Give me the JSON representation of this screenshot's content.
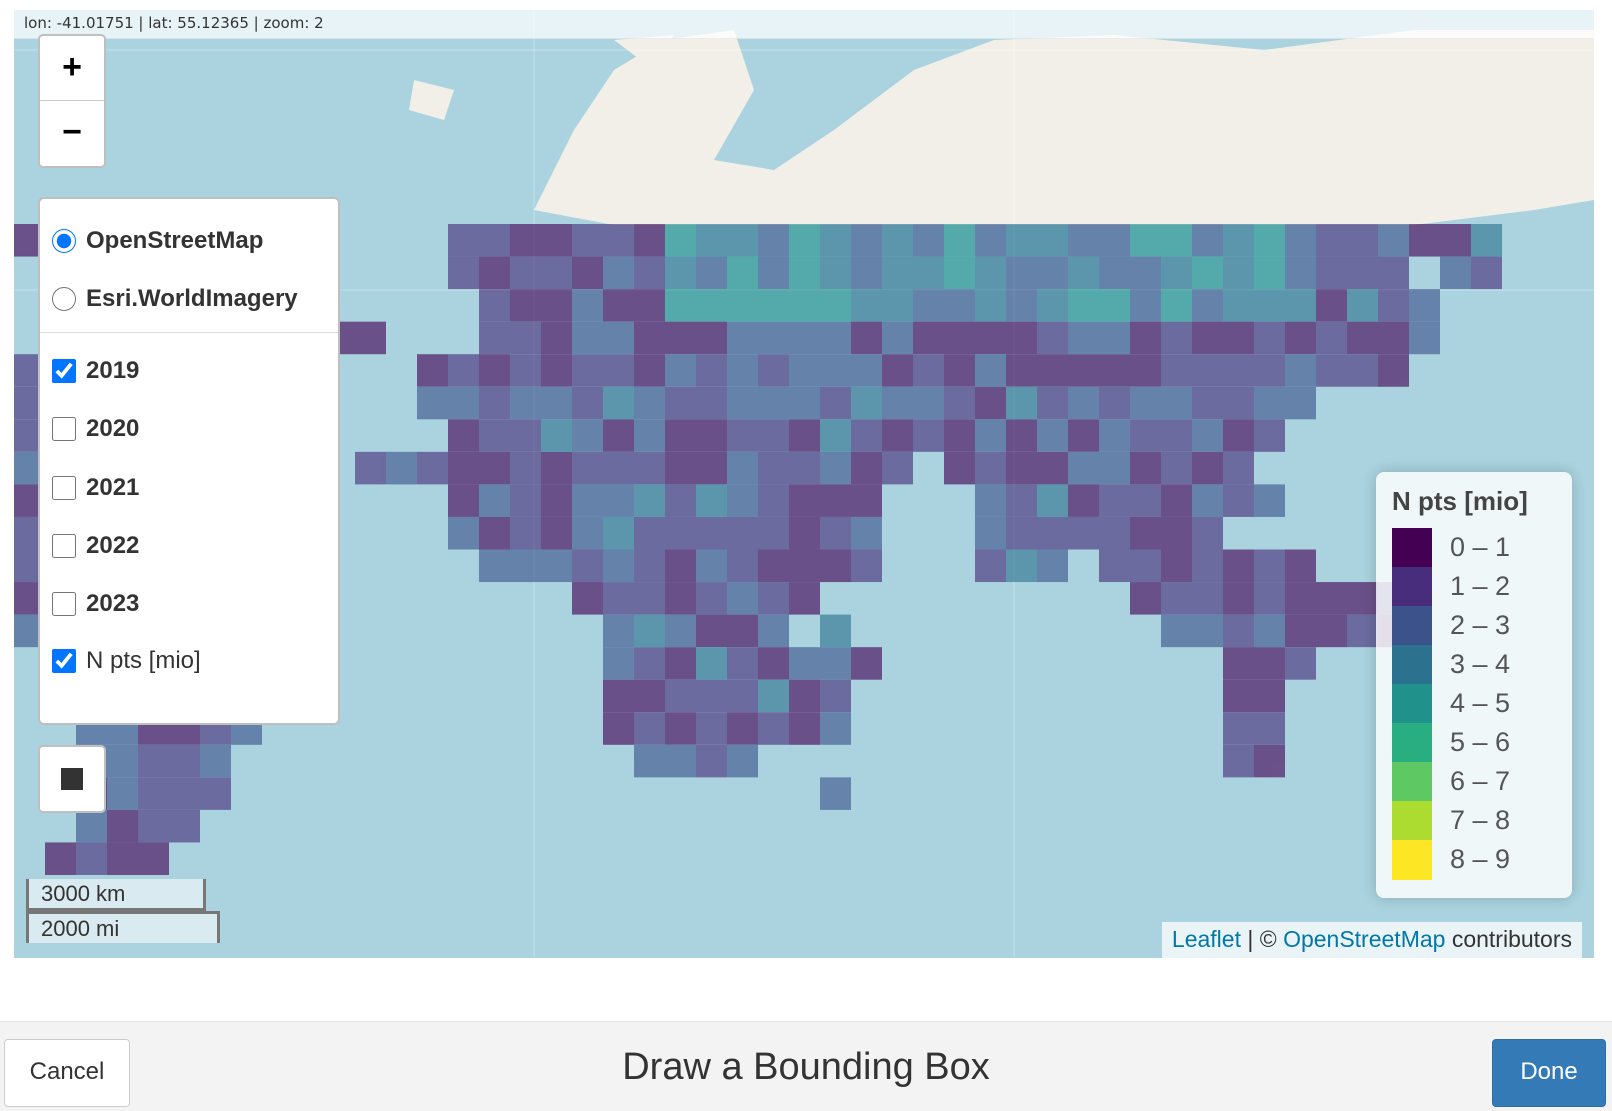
{
  "map": {
    "coordinates_text": "lon: -41.01751 | lat: 55.12365 | zoom: 2",
    "zoom_in_label": "+",
    "zoom_out_label": "−"
  },
  "layers": {
    "base_layers": [
      {
        "label": "OpenStreetMap",
        "selected": true
      },
      {
        "label": "Esri.WorldImagery",
        "selected": false
      }
    ],
    "overlays": [
      {
        "label": "2019",
        "checked": true
      },
      {
        "label": "2020",
        "checked": false
      },
      {
        "label": "2021",
        "checked": false
      },
      {
        "label": "2022",
        "checked": false
      },
      {
        "label": "2023",
        "checked": false
      },
      {
        "label": "N pts [mio]",
        "checked": true
      }
    ]
  },
  "legend": {
    "title": "N pts [mio]",
    "items": [
      {
        "label": "0 – 1",
        "color": "#440154"
      },
      {
        "label": "1 – 2",
        "color": "#472d7b"
      },
      {
        "label": "2 – 3",
        "color": "#3b528b"
      },
      {
        "label": "3 – 4",
        "color": "#2c728e"
      },
      {
        "label": "4 – 5",
        "color": "#21918c"
      },
      {
        "label": "5 – 6",
        "color": "#28ae80"
      },
      {
        "label": "6 – 7",
        "color": "#5ec962"
      },
      {
        "label": "7 – 8",
        "color": "#addc30"
      },
      {
        "label": "8 – 9",
        "color": "#fde725"
      }
    ]
  },
  "scale": {
    "metric": "3000 km",
    "imperial": "2000 mi"
  },
  "attribution": {
    "leaflet": "Leaflet",
    "separator": " | © ",
    "osm": "OpenStreetMap",
    "suffix": " contributors"
  },
  "toolbar": {
    "cancel_label": "Cancel",
    "title": "Draw a Bounding Box",
    "done_label": "Done"
  },
  "colors": {
    "water": "#aad3df",
    "land": "#f2efe9",
    "accent": "#337ab7"
  }
}
